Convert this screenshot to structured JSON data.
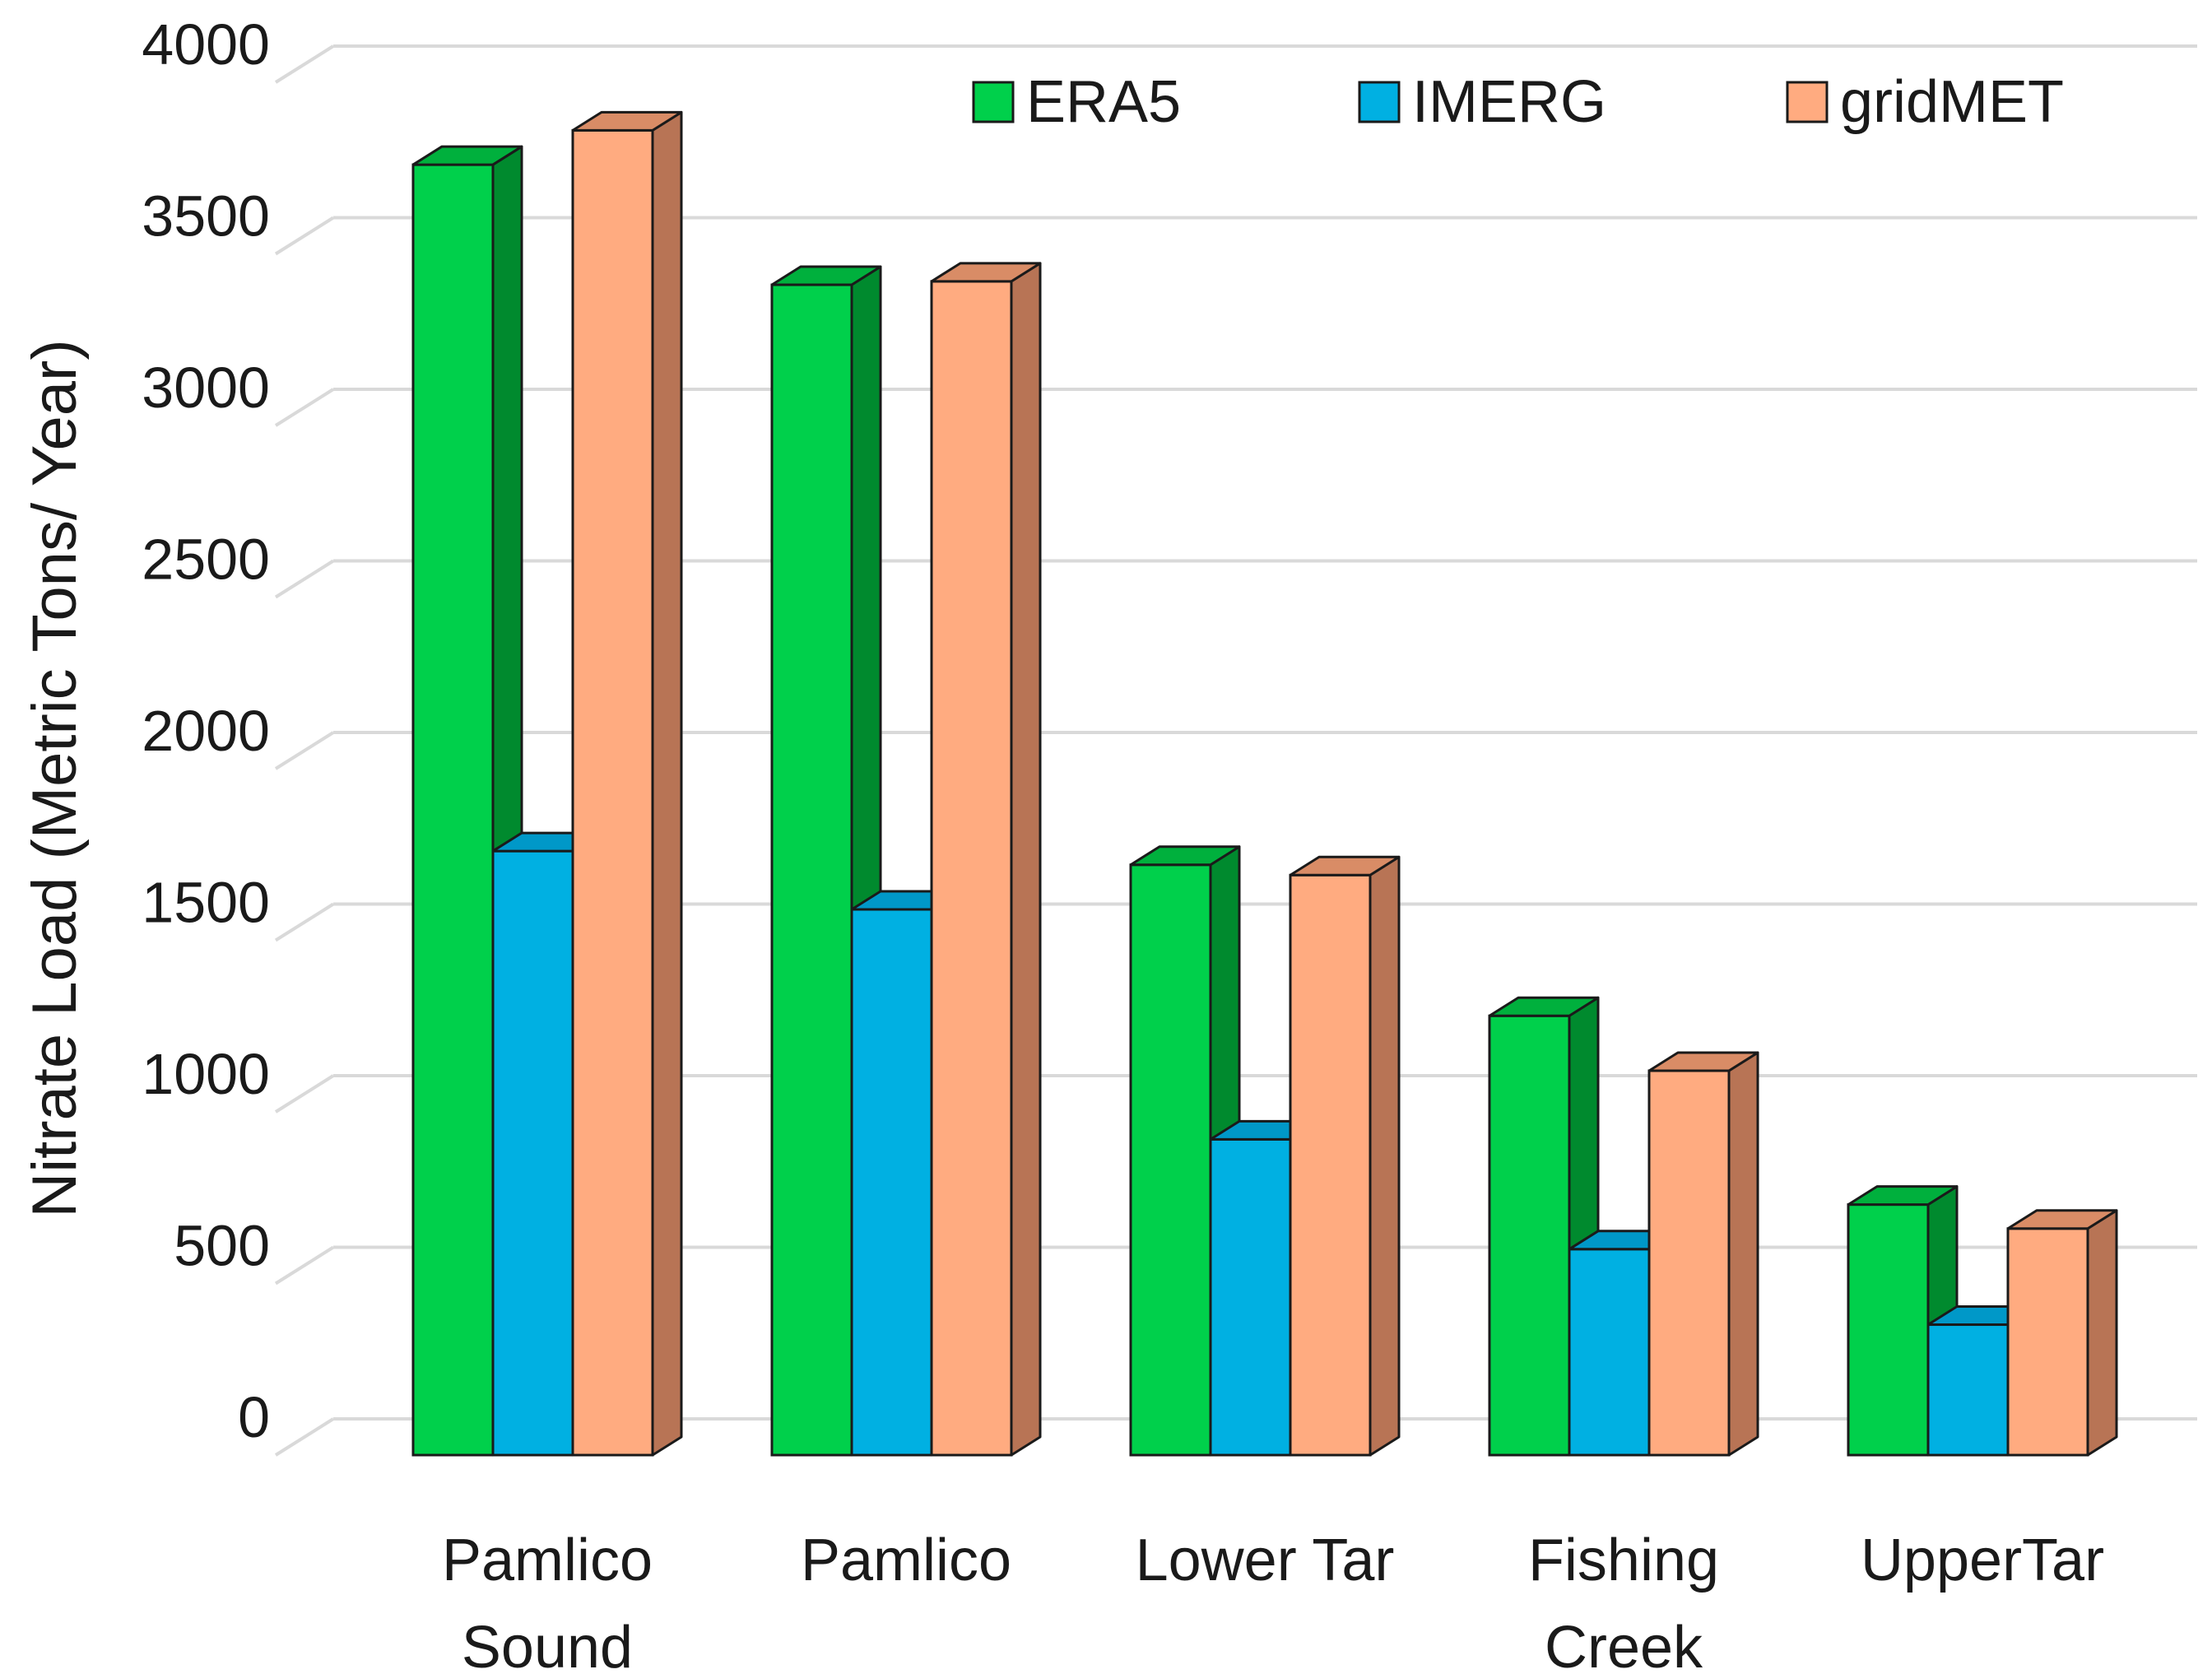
{
  "chart_data": {
    "type": "bar",
    "title": "",
    "xlabel": "",
    "ylabel": "Nitrate Load (Metric Tons/ Year)",
    "ylim": [
      0,
      4000
    ],
    "yticks": [
      "0",
      "500",
      "1000",
      "1500",
      "2000",
      "2500",
      "3000",
      "3500",
      "4000"
    ],
    "categories": [
      [
        "Pamlico",
        "Sound"
      ],
      [
        "Pamlico"
      ],
      [
        "Lower Tar"
      ],
      [
        "Fishing",
        "Creek"
      ],
      [
        "UpperTar"
      ]
    ],
    "series": [
      {
        "name": "ERA5",
        "values": [
          3760,
          3410,
          1720,
          1280,
          730
        ]
      },
      {
        "name": "IMERG",
        "values": [
          1760,
          1590,
          920,
          600,
          380
        ]
      },
      {
        "name": "gridMET",
        "values": [
          3860,
          3420,
          1690,
          1120,
          660
        ]
      }
    ],
    "grid": true,
    "legend": "top-right",
    "colors": {
      "ERA5": {
        "front": "#00d04b",
        "side": "#008a2e",
        "top": "#00b03d"
      },
      "IMERG": {
        "front": "#00b0e2",
        "side": "#0088b0",
        "top": "#0098c8"
      },
      "gridMET": {
        "front": "#ffab80",
        "side": "#b87455",
        "top": "#d98c66"
      }
    }
  }
}
